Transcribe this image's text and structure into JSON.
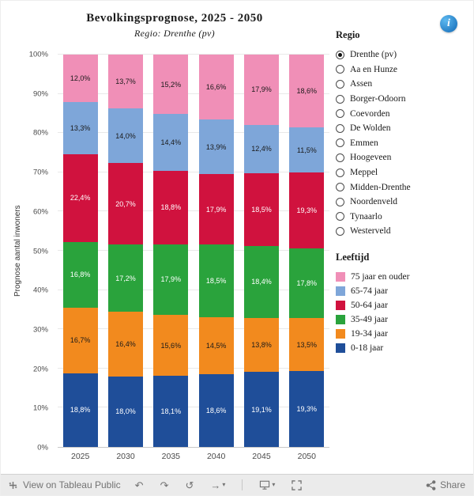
{
  "header": {
    "title": "Bevolkingsprognose, 2025 - 2050",
    "subtitle": "Regio: Drenthe (pv)",
    "info_glyph": "i"
  },
  "chart_data": {
    "type": "bar",
    "stacked": true,
    "normalized_percent": true,
    "title": "Bevolkingsprognose, 2025 - 2050",
    "subtitle": "Regio: Drenthe (pv)",
    "categories": [
      "2025",
      "2030",
      "2035",
      "2040",
      "2045",
      "2050"
    ],
    "series": [
      {
        "name": "0-18 jaar",
        "color": "#1F4E99",
        "values": [
          18.8,
          18.0,
          18.1,
          18.6,
          19.1,
          19.3
        ]
      },
      {
        "name": "19-34 jaar",
        "color": "#F28A1E",
        "values": [
          16.7,
          16.4,
          15.6,
          14.5,
          13.8,
          13.5
        ]
      },
      {
        "name": "35-49 jaar",
        "color": "#2AA33C",
        "values": [
          16.8,
          17.2,
          17.9,
          18.5,
          18.4,
          17.8
        ]
      },
      {
        "name": "50-64 jaar",
        "color": "#D0123E",
        "values": [
          22.4,
          20.7,
          18.8,
          17.9,
          18.5,
          19.3
        ]
      },
      {
        "name": "65-74 jaar",
        "color": "#7EA6D9",
        "values": [
          13.3,
          14.0,
          14.4,
          13.9,
          12.4,
          11.5
        ]
      },
      {
        "name": "75 jaar en ouder",
        "color": "#F08FB7",
        "values": [
          12.0,
          13.7,
          15.2,
          16.6,
          17.9,
          18.6
        ]
      }
    ],
    "xlabel": "",
    "ylabel": "Prognose aantal inwoners",
    "ylim": [
      0,
      100
    ],
    "yticks": [
      "0%",
      "10%",
      "20%",
      "30%",
      "40%",
      "50%",
      "60%",
      "70%",
      "80%",
      "90%",
      "100%"
    ],
    "grid": true,
    "legend_position": "right",
    "label_decimal_separator": ","
  },
  "regio_panel": {
    "header": "Regio",
    "options": [
      {
        "label": "Drenthe (pv)",
        "selected": true
      },
      {
        "label": "Aa en Hunze",
        "selected": false
      },
      {
        "label": "Assen",
        "selected": false
      },
      {
        "label": "Borger-Odoorn",
        "selected": false
      },
      {
        "label": "Coevorden",
        "selected": false
      },
      {
        "label": "De Wolden",
        "selected": false
      },
      {
        "label": "Emmen",
        "selected": false
      },
      {
        "label": "Hoogeveen",
        "selected": false
      },
      {
        "label": "Meppel",
        "selected": false
      },
      {
        "label": "Midden-Drenthe",
        "selected": false
      },
      {
        "label": "Noordenveld",
        "selected": false
      },
      {
        "label": "Tynaarlo",
        "selected": false
      },
      {
        "label": "Westerveld",
        "selected": false
      }
    ]
  },
  "legend": {
    "header": "Leeftijd"
  },
  "toolbar": {
    "view_label": "View on Tableau Public",
    "share_label": "Share",
    "icons": {
      "undo": "↶",
      "redo": "↷",
      "replay": "↺",
      "resume": "→",
      "caret": "▾"
    }
  }
}
